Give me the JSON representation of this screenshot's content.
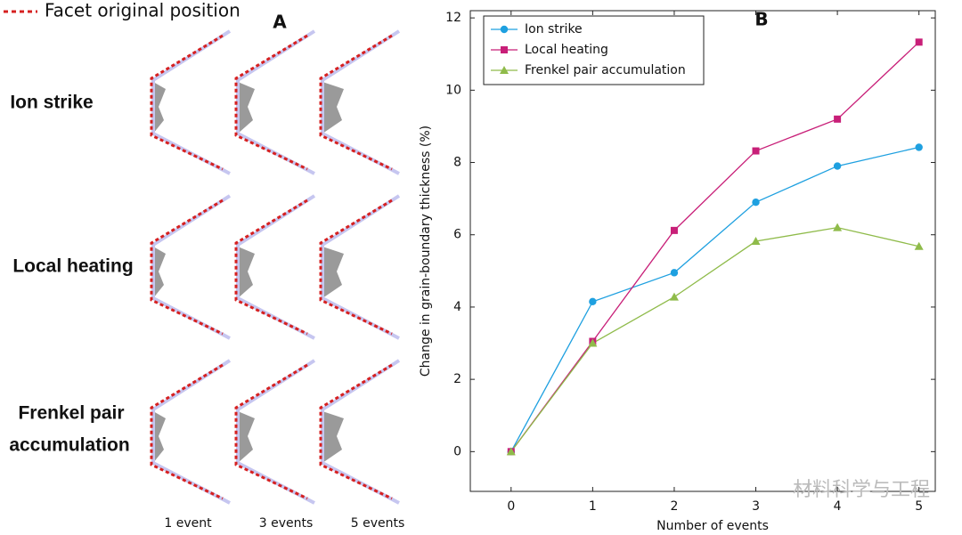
{
  "panel_a": {
    "legend_label": "Facet original position",
    "title": "A",
    "rows": [
      [
        "Ion strike"
      ],
      [
        "Local heating"
      ],
      [
        "Frenkel pair",
        "accumulation"
      ]
    ],
    "columns": [
      "1 event",
      "3 events",
      "5 events"
    ]
  },
  "watermark": "材料科学与工程",
  "chart_data": {
    "type": "line",
    "title": "B",
    "x_label": "Number of events",
    "y_label": "Change in grain-boundary thickness (%)",
    "x": [
      0,
      1,
      2,
      3,
      4,
      5
    ],
    "series": [
      {
        "name": "Ion strike",
        "color": "#1ea0e0",
        "marker": "circle",
        "values": [
          0,
          4.15,
          4.95,
          6.9,
          7.9,
          8.42
        ]
      },
      {
        "name": "Local heating",
        "color": "#c81f78",
        "marker": "square",
        "values": [
          0,
          3.05,
          6.12,
          8.32,
          9.2,
          11.33
        ]
      },
      {
        "name": "Frenkel pair accumulation",
        "color": "#8fbb4a",
        "marker": "triangle",
        "values": [
          0,
          3.0,
          4.28,
          5.82,
          6.2,
          5.68
        ]
      }
    ],
    "xlim": [
      -0.5,
      5.2
    ],
    "ylim": [
      -1.1,
      12.2
    ],
    "xticks": [
      0,
      1,
      2,
      3,
      4,
      5
    ],
    "yticks": [
      0,
      2,
      4,
      6,
      8,
      10,
      12
    ],
    "grid": false,
    "legend_position": "upper left"
  }
}
